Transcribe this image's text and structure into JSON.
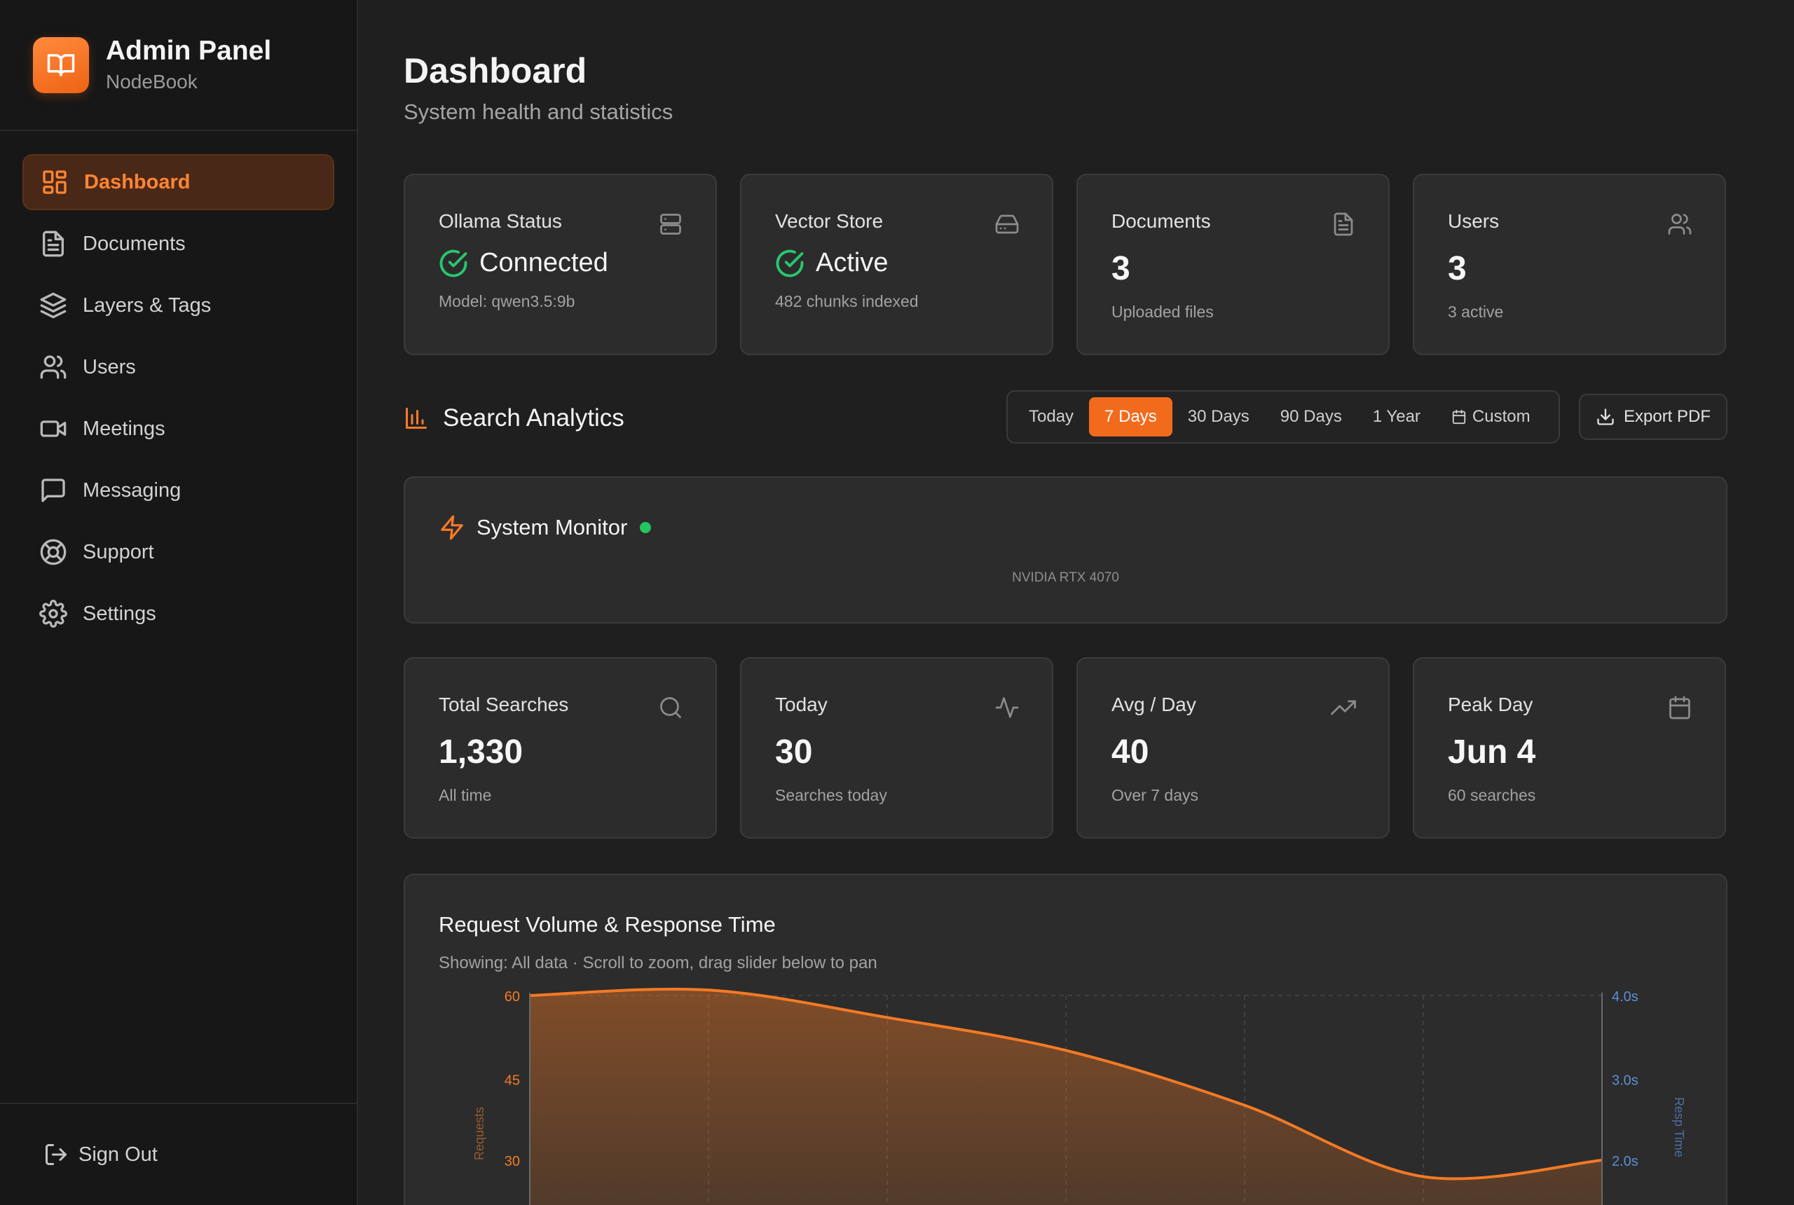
{
  "sidebar": {
    "brand_title": "Admin Panel",
    "brand_subtitle": "NodeBook",
    "items": [
      {
        "label": "Dashboard",
        "icon": "dashboard-grid-icon",
        "active": true
      },
      {
        "label": "Documents",
        "icon": "document-icon"
      },
      {
        "label": "Layers & Tags",
        "icon": "layers-icon"
      },
      {
        "label": "Users",
        "icon": "users-icon"
      },
      {
        "label": "Meetings",
        "icon": "video-camera-icon"
      },
      {
        "label": "Messaging",
        "icon": "message-icon"
      },
      {
        "label": "Support",
        "icon": "lifebuoy-icon"
      },
      {
        "label": "Settings",
        "icon": "gear-icon"
      }
    ],
    "sign_out": "Sign Out"
  },
  "header": {
    "title": "Dashboard",
    "subtitle": "System health and statistics"
  },
  "status_cards": [
    {
      "label": "Ollama Status",
      "icon": "server-icon",
      "value": "Connected",
      "note": "Model: qwen3.5:9b"
    },
    {
      "label": "Vector Store",
      "icon": "hard-drive-icon",
      "value": "Active",
      "note": "482 chunks indexed"
    },
    {
      "label": "Documents",
      "icon": "file-text-icon",
      "value": "3",
      "note": "Uploaded files"
    },
    {
      "label": "Users",
      "icon": "users-icon",
      "value": "3",
      "note": "3 active"
    }
  ],
  "analytics": {
    "title": "Search Analytics",
    "ranges": [
      "Today",
      "7 Days",
      "30 Days",
      "90 Days",
      "1 Year",
      "Custom"
    ],
    "active_range": "7 Days",
    "export_label": "Export PDF"
  },
  "monitor": {
    "title": "System Monitor",
    "gpu": "NVIDIA RTX 4070",
    "status_color": "#22c55e"
  },
  "stat_cards": [
    {
      "label": "Total Searches",
      "icon": "search-icon",
      "value": "1,330",
      "note": "All time"
    },
    {
      "label": "Today",
      "icon": "activity-icon",
      "value": "30",
      "note": "Searches today"
    },
    {
      "label": "Avg / Day",
      "icon": "trending-up-icon",
      "value": "40",
      "note": "Over 7 days"
    },
    {
      "label": "Peak Day",
      "icon": "calendar-icon",
      "value": "Jun 4",
      "note": "60 searches"
    }
  ],
  "chart": {
    "title": "Request Volume & Response Time",
    "subtitle": "Showing: All data · Scroll to zoom, drag slider below to pan"
  },
  "chart_data": {
    "type": "area",
    "x": [
      0,
      1,
      2,
      3,
      4,
      5,
      6
    ],
    "series": [
      {
        "name": "Requests",
        "values": [
          60,
          61,
          56,
          50,
          40,
          27,
          30
        ]
      }
    ],
    "ylabel": "Requests",
    "y_ticks": [
      "60",
      "45",
      "30"
    ],
    "ylim": [
      30,
      60
    ],
    "y2label": "Resp Time",
    "y2_ticks": [
      "4.0s",
      "3.0s",
      "2.0s"
    ],
    "grid": true,
    "colors": {
      "requests": "#f47a24",
      "resp_time": "#5b8fd6"
    }
  },
  "colors": {
    "accent": "#f26b1d",
    "success": "#28c76f",
    "background": "#1f1f1f",
    "sidebar": "#171717",
    "card": "#2c2c2c"
  }
}
